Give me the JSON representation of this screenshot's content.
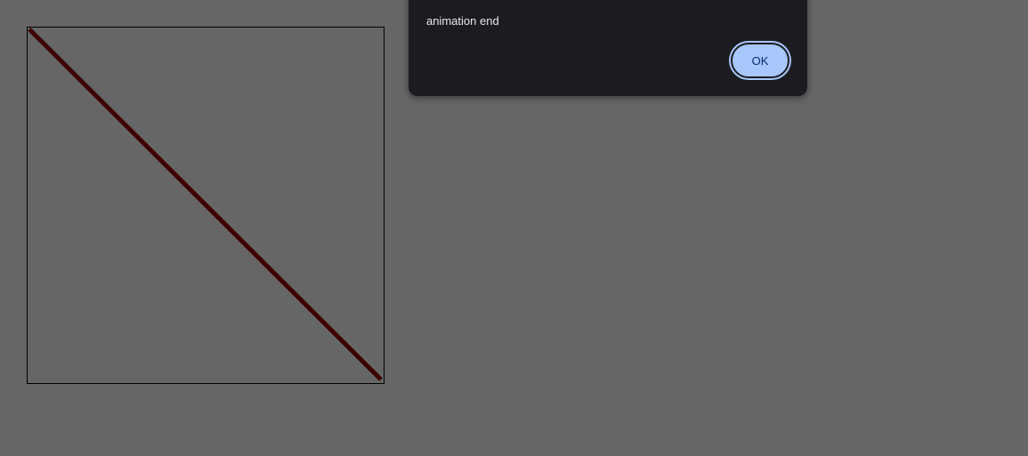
{
  "page": {
    "background_color": "#666666"
  },
  "canvas": {
    "border_color": "#000000",
    "line_color": "#3d0000"
  },
  "dialog": {
    "title": "",
    "message": "animation end",
    "ok_label": "OK",
    "background_color": "#1b1c20",
    "button_color": "#a8c7fa"
  }
}
